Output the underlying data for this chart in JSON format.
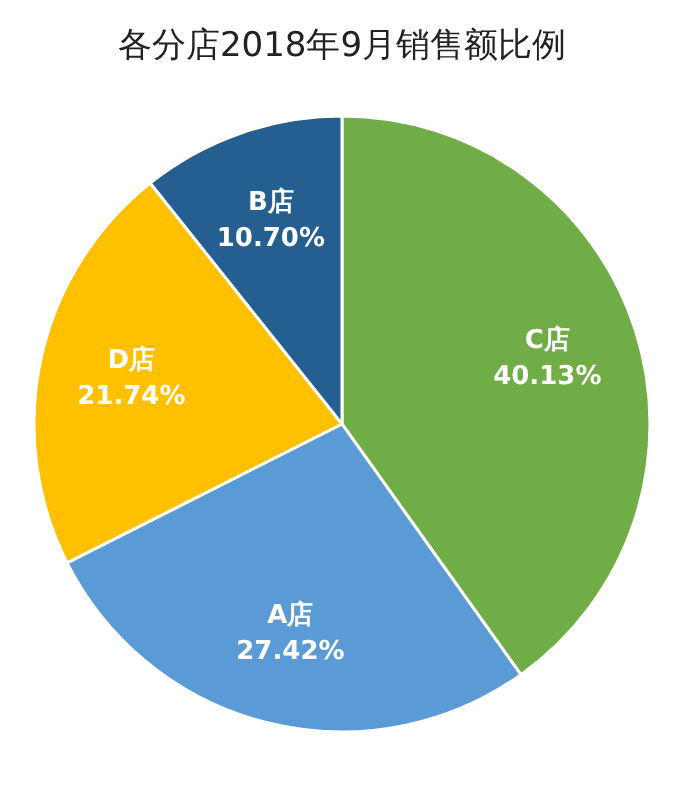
{
  "chart_data": {
    "type": "pie",
    "title": "各分店2018年9月销售额比例",
    "categories": [
      "C店",
      "A店",
      "D店",
      "B店"
    ],
    "values": [
      40.13,
      27.42,
      21.74,
      10.7
    ],
    "value_labels": [
      "40.13%",
      "27.42%",
      "21.74%",
      "10.70%"
    ],
    "colors": [
      "#70ad47",
      "#5b9bd5",
      "#ffc000",
      "#255e91"
    ],
    "legend": false
  }
}
